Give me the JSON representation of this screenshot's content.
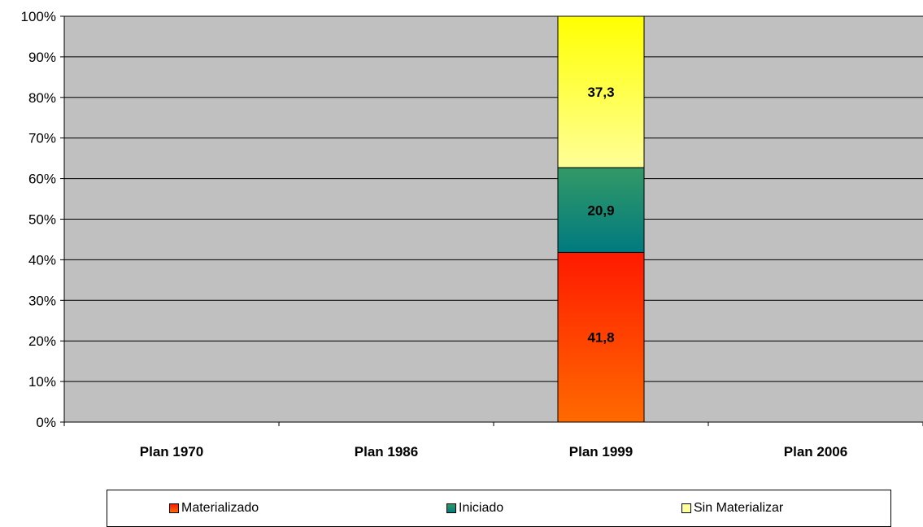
{
  "chart_data": {
    "type": "bar",
    "stacked": true,
    "categories": [
      "Plan 1970",
      "Plan 1986",
      "Plan 1999",
      "Plan 2006"
    ],
    "series": [
      {
        "name": "Materializado",
        "values": [
          null,
          null,
          41.8,
          null
        ],
        "color_top": "#ff1a00",
        "color_bottom": "#ff6a00"
      },
      {
        "name": "Iniciado",
        "values": [
          null,
          null,
          20.9,
          null
        ],
        "color_top": "#339966",
        "color_bottom": "#007a80"
      },
      {
        "name": "Sin Materializar",
        "values": [
          null,
          null,
          37.3,
          null
        ],
        "color_top": "#ffff00",
        "color_bottom": "#ffff99"
      }
    ],
    "data_labels": [
      "41,8",
      "20,9",
      "37,3"
    ],
    "y_ticks": [
      "0%",
      "10%",
      "20%",
      "30%",
      "40%",
      "50%",
      "60%",
      "70%",
      "80%",
      "90%",
      "100%"
    ],
    "ylim": [
      0,
      100
    ],
    "grid": true,
    "plot_background": "#c0c0c0",
    "legend_position": "bottom",
    "title": "",
    "xlabel": "",
    "ylabel": ""
  }
}
